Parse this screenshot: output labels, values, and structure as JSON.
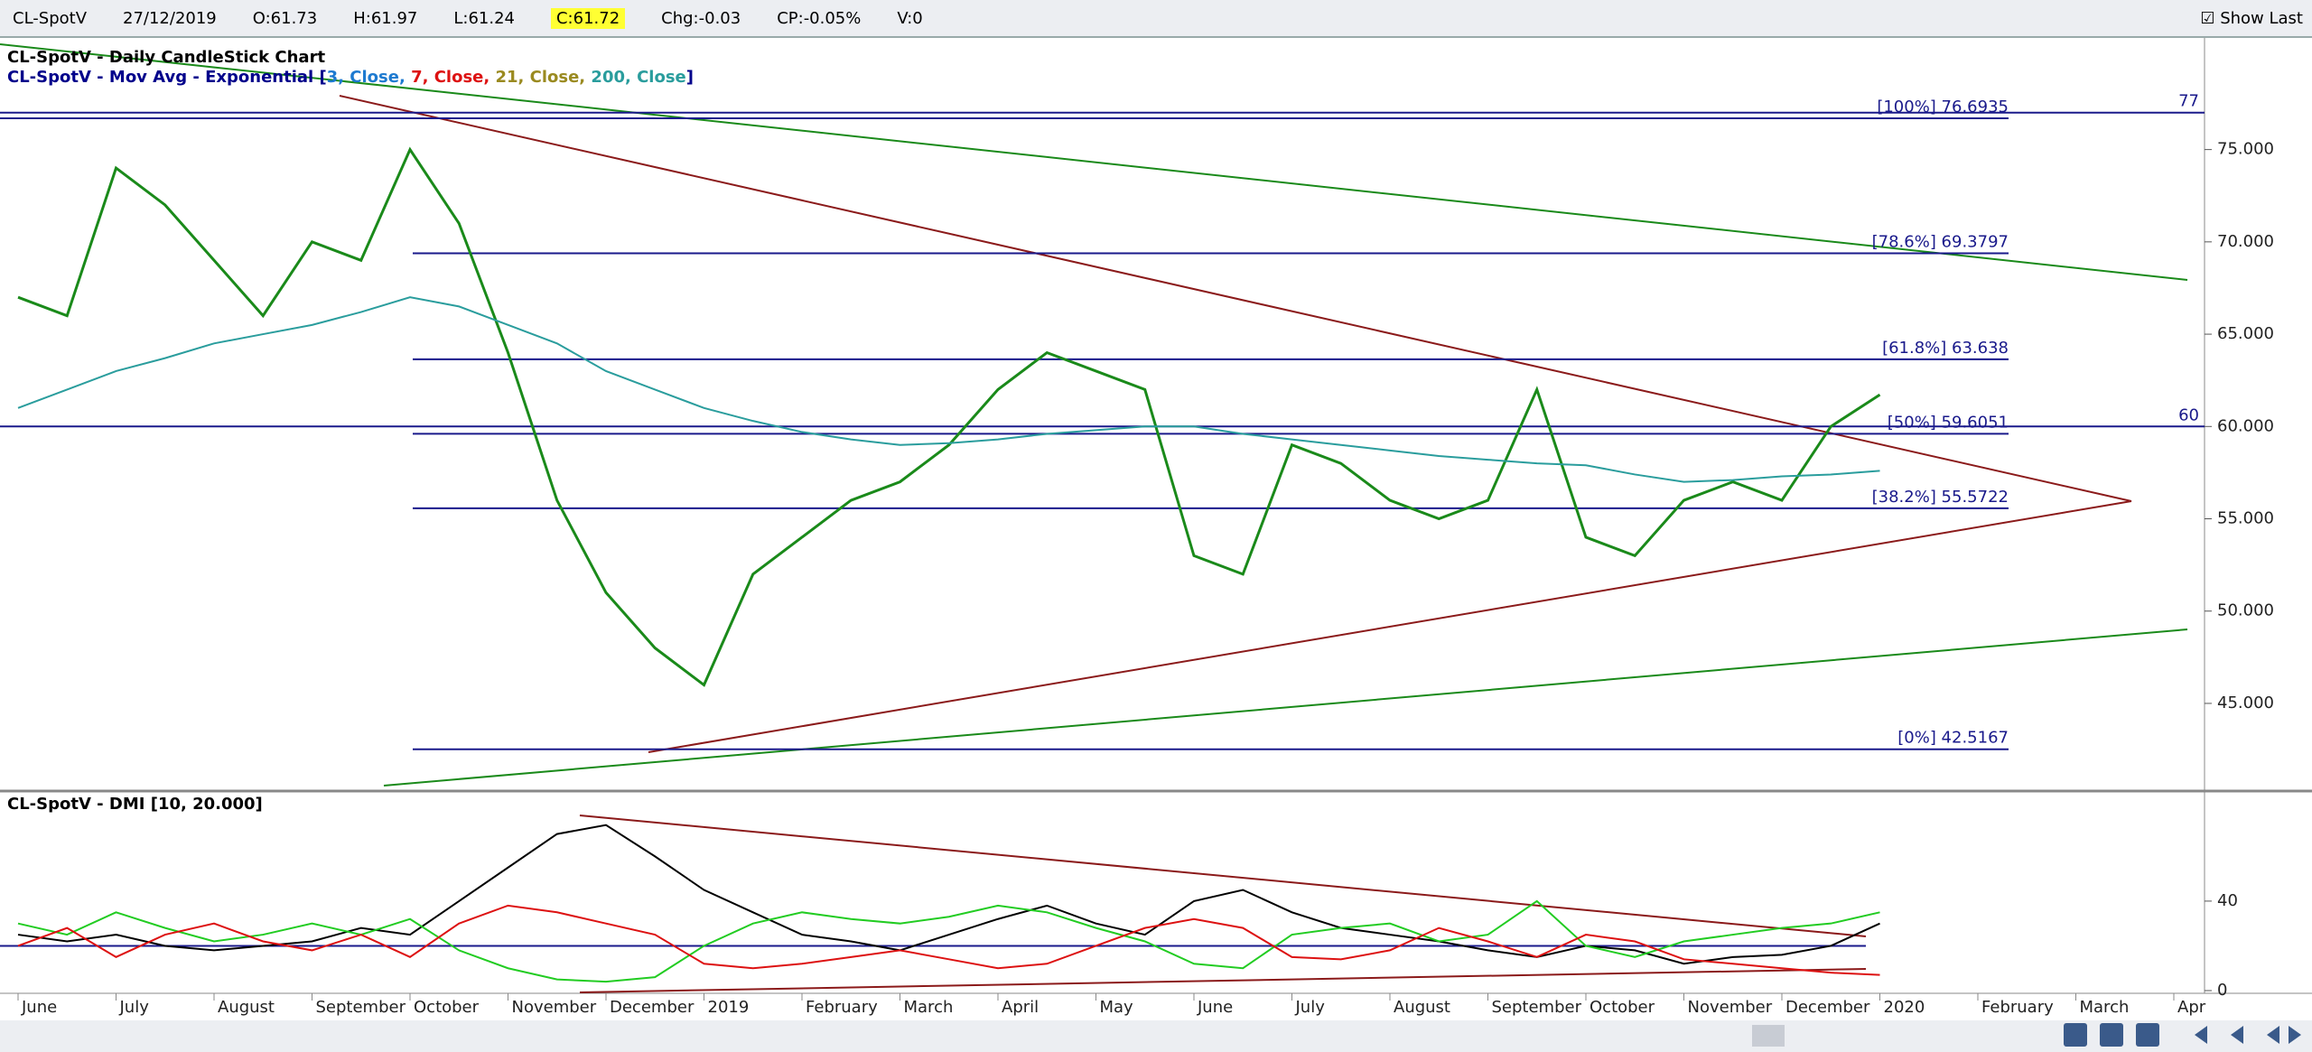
{
  "header": {
    "symbol": "CL-SpotV",
    "date": "27/12/2019",
    "open": "O:61.73",
    "high": "H:61.97",
    "low": "L:61.24",
    "close": "C:61.72",
    "change": "Chg:-0.03",
    "change_pct": "CP:-0.05%",
    "volume": "V:0",
    "show_last": "Show Last"
  },
  "chart_data": [
    {
      "type": "line",
      "title": "CL-SpotV - Daily CandleStick Chart",
      "subtitle_parts": [
        "CL-SpotV - Mov Avg - Exponential [",
        "3, Close, ",
        "7, Close, ",
        "21, Close, ",
        "]"
      ],
      "categories": [
        "June",
        null,
        "July",
        null,
        "August",
        null,
        "September",
        null,
        "October",
        null,
        "November",
        null,
        "December",
        null,
        "2019",
        null,
        "February",
        null,
        "March",
        null,
        "April",
        null,
        "May",
        null,
        "June",
        null,
        "July",
        null,
        "August",
        null,
        "September",
        null,
        "October",
        null,
        "November",
        null,
        "December",
        null,
        "2020",
        null,
        "February",
        null,
        "March",
        null,
        "Apr"
      ],
      "series": [
        {
          "color": "#1a8a1a",
          "values": [
            67,
            66,
            74,
            72,
            69,
            66,
            70,
            69,
            75,
            71,
            64,
            56,
            51,
            48,
            46,
            52,
            54,
            56,
            57,
            59,
            62,
            64,
            63,
            62,
            53,
            52,
            59,
            58,
            56,
            55,
            56,
            62,
            54,
            53,
            56,
            57,
            56,
            60,
            61.72,
            null,
            null,
            null,
            null,
            null,
            null
          ]
        },
        {
          "name": "200, Close",
          "color": "#2a9d9d",
          "values": [
            61,
            62,
            63,
            63.7,
            64.5,
            65,
            65.5,
            66.2,
            67,
            66.5,
            65.5,
            64.5,
            63,
            62,
            61,
            60.3,
            59.7,
            59.3,
            59,
            59.1,
            59.3,
            59.6,
            59.8,
            60,
            60,
            59.6,
            59.3,
            59,
            58.7,
            58.4,
            58.2,
            58,
            57.9,
            57.4,
            57,
            57.1,
            57.3,
            57.4,
            57.6,
            null,
            null,
            null,
            null,
            null,
            null
          ]
        }
      ],
      "ylim": [
        40.4,
        80.9
      ],
      "yticks": [
        {
          "value": 45,
          "label": "45.000"
        },
        {
          "value": 50,
          "label": "50.000"
        },
        {
          "value": 55,
          "label": "55.000"
        },
        {
          "value": 60,
          "label": "60.000"
        },
        {
          "value": 65,
          "label": "65.000"
        },
        {
          "value": 70,
          "label": "70.000"
        },
        {
          "value": 75,
          "label": "75.000"
        }
      ],
      "fib_levels": [
        {
          "value": 76.6935,
          "label": "[100%] 76.6935"
        },
        {
          "value": 69.3797,
          "label": "[78.6%] 69.3797"
        },
        {
          "value": 63.638,
          "label": "[61.8%] 63.638"
        },
        {
          "value": 59.6051,
          "label": "[50%] 59.6051"
        },
        {
          "value": 55.5722,
          "label": "[38.2%] 55.5722"
        },
        {
          "value": 42.5167,
          "label": "[0%] 42.5167"
        }
      ],
      "levels": [
        77,
        60
      ]
    },
    {
      "type": "line",
      "title": "CL-SpotV - DMI [10, 20.000]",
      "series": [
        {
          "color": "#000000",
          "values": [
            25,
            22,
            25,
            20,
            18,
            20,
            22,
            28,
            25,
            40,
            55,
            70,
            74,
            60,
            45,
            35,
            25,
            22,
            18,
            25,
            32,
            38,
            30,
            25,
            40,
            45,
            35,
            28,
            25,
            22,
            18,
            15,
            20,
            18,
            12,
            15,
            16,
            20,
            30,
            null,
            null,
            null,
            null,
            null,
            null
          ]
        },
        {
          "color": "#22cc22",
          "values": [
            30,
            25,
            35,
            28,
            22,
            25,
            30,
            25,
            32,
            18,
            10,
            5,
            4,
            6,
            20,
            30,
            35,
            32,
            30,
            33,
            38,
            35,
            28,
            22,
            12,
            10,
            25,
            28,
            30,
            22,
            25,
            40,
            20,
            15,
            22,
            25,
            28,
            30,
            35,
            null,
            null,
            null,
            null,
            null,
            null
          ]
        },
        {
          "color": "#dd1111",
          "values": [
            20,
            28,
            15,
            25,
            30,
            22,
            18,
            25,
            15,
            30,
            38,
            35,
            30,
            25,
            12,
            10,
            12,
            15,
            18,
            14,
            10,
            12,
            20,
            28,
            32,
            28,
            15,
            14,
            18,
            28,
            22,
            15,
            25,
            22,
            14,
            12,
            10,
            8,
            7,
            null,
            null,
            null,
            null,
            null,
            null
          ]
        }
      ],
      "ylim": [
        0,
        88
      ],
      "yticks": [
        0,
        40
      ],
      "level": 20
    }
  ]
}
